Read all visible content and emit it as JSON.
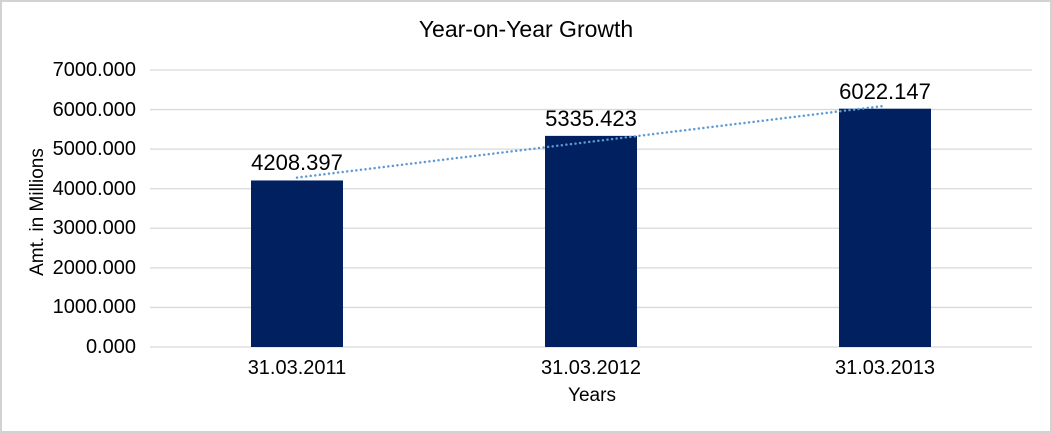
{
  "chart_data": {
    "type": "bar",
    "title": "Year-on-Year Growth",
    "xlabel": "Years",
    "ylabel": "Amt. in Millions",
    "categories": [
      "31.03.2011",
      "31.03.2012",
      "31.03.2013"
    ],
    "values": [
      4208.397,
      5335.423,
      6022.147
    ],
    "data_labels": [
      "4208.397",
      "5335.423",
      "6022.147"
    ],
    "ylim": [
      0,
      7000
    ],
    "ytick_step": 1000,
    "ytick_labels": [
      "0.000",
      "1000.000",
      "2000.000",
      "3000.000",
      "4000.000",
      "5000.000",
      "6000.000",
      "7000.000"
    ],
    "grid": true,
    "legend": false,
    "trendline": {
      "type": "linear",
      "style": "dotted"
    },
    "colors": {
      "bar": "#002060",
      "trendline": "#5b9bd5",
      "gridline": "#d9d9d9",
      "text": "#000000",
      "background": "#ffffff",
      "frame_border": "#d2d2d2"
    }
  }
}
